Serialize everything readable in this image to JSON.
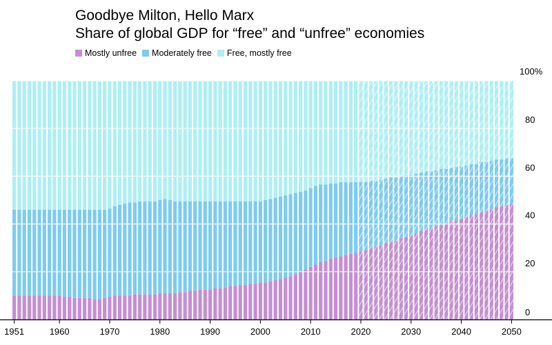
{
  "chart_data": {
    "type": "bar",
    "stacked": true,
    "title": "Goodbye Milton, Hello Marx",
    "subtitle": "Share of global GDP for “free” and “unfree” economies",
    "x": [
      1951,
      1952,
      1953,
      1954,
      1955,
      1956,
      1957,
      1958,
      1959,
      1960,
      1961,
      1962,
      1963,
      1964,
      1965,
      1966,
      1967,
      1968,
      1969,
      1970,
      1971,
      1972,
      1973,
      1974,
      1975,
      1976,
      1977,
      1978,
      1979,
      1980,
      1981,
      1982,
      1983,
      1984,
      1985,
      1986,
      1987,
      1988,
      1989,
      1990,
      1991,
      1992,
      1993,
      1994,
      1995,
      1996,
      1997,
      1998,
      1999,
      2000,
      2001,
      2002,
      2003,
      2004,
      2005,
      2006,
      2007,
      2008,
      2009,
      2010,
      2011,
      2012,
      2013,
      2014,
      2015,
      2016,
      2017,
      2018,
      2019,
      2020,
      2021,
      2022,
      2023,
      2024,
      2025,
      2026,
      2027,
      2028,
      2029,
      2030,
      2031,
      2032,
      2033,
      2034,
      2035,
      2036,
      2037,
      2038,
      2039,
      2040,
      2041,
      2042,
      2043,
      2044,
      2045,
      2046,
      2047,
      2048,
      2049,
      2050
    ],
    "projection_start": 2020,
    "series": [
      {
        "name": "Mostly unfree",
        "color": "#c48fd2",
        "values": [
          10,
          10,
          10,
          10,
          10,
          10,
          10,
          10,
          10,
          10,
          9.5,
          9.5,
          9,
          9,
          9,
          9,
          8.5,
          8.5,
          9,
          9.5,
          10,
          10,
          10,
          10,
          10.5,
          10.5,
          10.5,
          10.5,
          10.5,
          11,
          11,
          11,
          11,
          11.5,
          11.5,
          12,
          12,
          12.5,
          12.5,
          12.5,
          13,
          13,
          13.5,
          14,
          14,
          14.5,
          14.5,
          15,
          15,
          15.5,
          15.5,
          16,
          16.5,
          17,
          17.5,
          18,
          19,
          20,
          21,
          22,
          23,
          24,
          24.5,
          25.5,
          26,
          26.5,
          27,
          27.5,
          28,
          28.5,
          29,
          30,
          30.5,
          31,
          32,
          32.5,
          33,
          34,
          34.5,
          35,
          36,
          37,
          37.5,
          38,
          39,
          39.5,
          40,
          41,
          41.5,
          42,
          43,
          43.5,
          44,
          45,
          45.5,
          46,
          47,
          47.5,
          48,
          48.5
        ]
      },
      {
        "name": "Moderately free",
        "color": "#7ecbee",
        "values": [
          36,
          36,
          36,
          36,
          36,
          36,
          36,
          36,
          36,
          36,
          36.5,
          36.5,
          37,
          37,
          37,
          37,
          37.5,
          37.5,
          37,
          37,
          37.5,
          38,
          38.5,
          39,
          38.5,
          39,
          39,
          39,
          39,
          39,
          39.5,
          39,
          38.5,
          38,
          38,
          37.5,
          37.5,
          37,
          37,
          37,
          36.5,
          36.5,
          36,
          35.5,
          35.5,
          35,
          35,
          34.5,
          34.5,
          34,
          34.5,
          34.5,
          34.5,
          34.5,
          34.5,
          34.5,
          34,
          33.5,
          33,
          33,
          33,
          32.5,
          32,
          31.5,
          31,
          31,
          30.5,
          30,
          29.5,
          29,
          28.5,
          28,
          27.5,
          27.5,
          27,
          27,
          26.5,
          26,
          26,
          25.5,
          25,
          24.5,
          24.5,
          24,
          23.5,
          23.5,
          23,
          22.5,
          22.5,
          22,
          21.5,
          21.5,
          21,
          21,
          20.5,
          20.5,
          20,
          19.5,
          19.5,
          19
        ]
      },
      {
        "name": "Free, mostly free",
        "color": "#aeeff2"
      }
    ],
    "ylim": [
      0,
      100
    ],
    "yticks": [
      {
        "value": 100,
        "label": "100%"
      },
      {
        "value": 80,
        "label": "80"
      },
      {
        "value": 60,
        "label": "60"
      },
      {
        "value": 40,
        "label": "40"
      },
      {
        "value": 20,
        "label": "20"
      },
      {
        "value": 0,
        "label": "0"
      }
    ],
    "xticks": [
      1951,
      1960,
      1970,
      1980,
      1990,
      2000,
      2010,
      2020,
      2030,
      2040,
      2050
    ],
    "legend_position": "top-left",
    "grid": true
  }
}
